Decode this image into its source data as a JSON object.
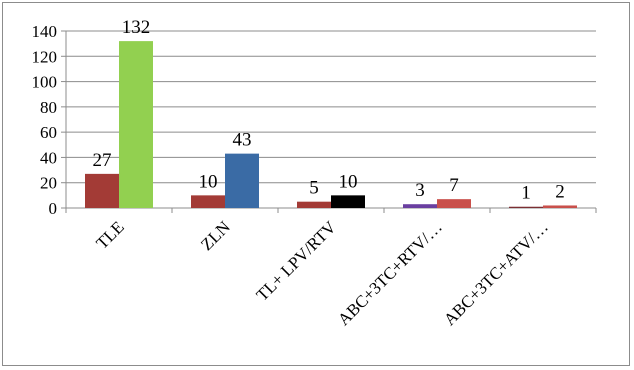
{
  "chart_data": {
    "type": "bar",
    "categories": [
      "TLE",
      "ZLN",
      "TL+ LPV/RTV",
      "ABC+3TC+RTV/…",
      "ABC+3TC+ATV/…"
    ],
    "bars": [
      [
        {
          "value": 27,
          "color": "#a33b36"
        },
        {
          "value": 132,
          "color": "#92d050"
        }
      ],
      [
        {
          "value": 10,
          "color": "#a33b36"
        },
        {
          "value": 43,
          "color": "#3a6ba5"
        }
      ],
      [
        {
          "value": 5,
          "color": "#a33b36"
        },
        {
          "value": 10,
          "color": "#000000"
        }
      ],
      [
        {
          "value": 3,
          "color": "#6a3fa0"
        },
        {
          "value": 7,
          "color": "#c9504b"
        }
      ],
      [
        {
          "value": 1,
          "color": "#7b2f33"
        },
        {
          "value": 2,
          "color": "#c9504b"
        }
      ]
    ],
    "ylim": [
      0,
      140
    ],
    "yticks": [
      0,
      20,
      40,
      60,
      80,
      100,
      120,
      140
    ],
    "grid": true,
    "title": "",
    "xlabel": "",
    "ylabel": ""
  }
}
